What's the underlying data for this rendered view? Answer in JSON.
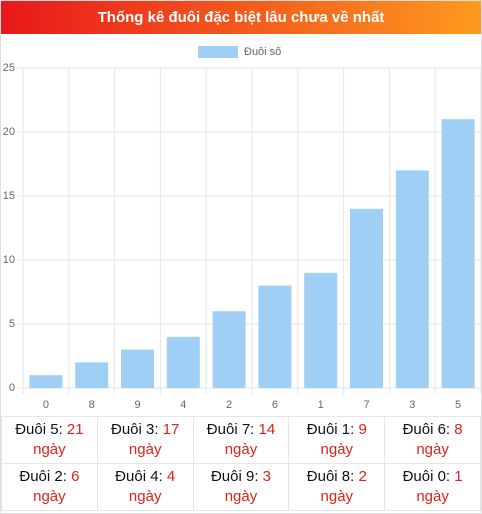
{
  "header": {
    "title": "Thống kê đuôi đặc biệt lâu chưa về nhất"
  },
  "chart_data": {
    "type": "bar",
    "categories": [
      "0",
      "8",
      "9",
      "4",
      "2",
      "6",
      "1",
      "7",
      "3",
      "5"
    ],
    "series": [
      {
        "name": "Đuôi số",
        "color": "#9fcff5",
        "values": [
          1,
          2,
          3,
          4,
          6,
          8,
          9,
          14,
          17,
          21
        ]
      }
    ],
    "ylim": [
      0,
      25
    ],
    "yticks": [
      0,
      5,
      10,
      15,
      20,
      25
    ],
    "grid": true,
    "legend": "top"
  },
  "table": {
    "rows": [
      [
        {
          "label": "Đuôi 5:",
          "value": 21,
          "unit": "ngày"
        },
        {
          "label": "Đuôi 3:",
          "value": 17,
          "unit": "ngày"
        },
        {
          "label": "Đuôi 7:",
          "value": 14,
          "unit": "ngày"
        },
        {
          "label": "Đuôi 1:",
          "value": 9,
          "unit": "ngày"
        },
        {
          "label": "Đuôi 6:",
          "value": 8,
          "unit": "ngày"
        }
      ],
      [
        {
          "label": "Đuôi 2:",
          "value": 6,
          "unit": "ngày"
        },
        {
          "label": "Đuôi 4:",
          "value": 4,
          "unit": "ngày"
        },
        {
          "label": "Đuôi 9:",
          "value": 3,
          "unit": "ngày"
        },
        {
          "label": "Đuôi 8:",
          "value": 2,
          "unit": "ngày"
        },
        {
          "label": "Đuôi 0:",
          "value": 1,
          "unit": "ngày"
        }
      ]
    ]
  }
}
